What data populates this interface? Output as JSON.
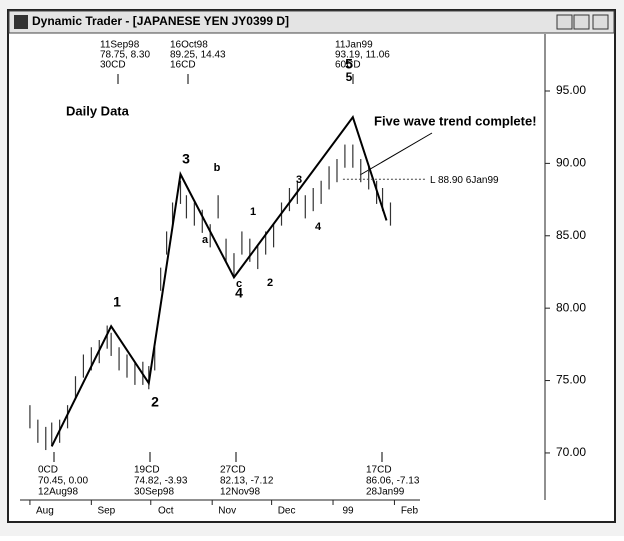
{
  "window_title": "Dynamic Trader - [JAPANESE YEN  JY0399 D]",
  "chart_data": {
    "type": "line",
    "subtitle": "Daily Data",
    "annotation": "Five wave trend complete!",
    "level": {
      "value": 88.9,
      "label": "L 88.90 6Jan99"
    },
    "xlim": [
      -4,
      260
    ],
    "ylim": [
      66.75,
      98.66
    ],
    "xticks": [
      {
        "value": 0,
        "label": "Aug"
      },
      {
        "value": 31,
        "label": "Sep"
      },
      {
        "value": 61,
        "label": "Oct"
      },
      {
        "value": 92,
        "label": "Nov"
      },
      {
        "value": 122,
        "label": "Dec"
      },
      {
        "value": 153,
        "label": "99"
      },
      {
        "value": 184,
        "label": "Feb"
      }
    ],
    "yticks": [
      {
        "value": 70,
        "label": "70.00"
      },
      {
        "value": 75,
        "label": "75.00"
      },
      {
        "value": 80,
        "label": "80.00"
      },
      {
        "value": 85,
        "label": "85.00"
      },
      {
        "value": 90,
        "label": "90.00"
      },
      {
        "value": 95,
        "label": "95.00"
      }
    ],
    "series": [
      {
        "name": "wave",
        "color": "#000000",
        "x": [
          11,
          41,
          60,
          76,
          103,
          163,
          180
        ],
        "values": [
          70.45,
          78.75,
          74.82,
          89.25,
          82.13,
          93.19,
          86.06
        ]
      }
    ],
    "bars": {
      "color": "#333333",
      "x": [
        0,
        4,
        8,
        11,
        15,
        19,
        23,
        27,
        31,
        35,
        39,
        41,
        45,
        49,
        53,
        57,
        60,
        63,
        66,
        69,
        72,
        76,
        79,
        83,
        87,
        91,
        95,
        99,
        103,
        107,
        111,
        115,
        119,
        123,
        127,
        131,
        135,
        139,
        143,
        147,
        151,
        155,
        159,
        163,
        167,
        171,
        175,
        178,
        182
      ],
      "high": [
        73.3,
        72.3,
        71.8,
        72.1,
        72.3,
        73.3,
        75.3,
        76.8,
        77.3,
        77.8,
        78.8,
        78.3,
        77.3,
        76.8,
        76.3,
        76.3,
        76.0,
        77.3,
        82.8,
        85.3,
        87.3,
        88.8,
        87.8,
        87.3,
        86.8,
        85.8,
        87.8,
        84.8,
        83.8,
        85.3,
        84.8,
        84.3,
        85.3,
        85.8,
        87.3,
        88.3,
        88.8,
        87.8,
        88.3,
        88.8,
        89.8,
        90.3,
        91.3,
        91.3,
        90.3,
        89.8,
        88.8,
        88.3,
        87.3
      ],
      "low": [
        71.7,
        70.7,
        70.2,
        70.5,
        70.7,
        71.7,
        73.7,
        75.2,
        75.7,
        76.2,
        77.2,
        76.7,
        75.7,
        75.2,
        74.7,
        74.7,
        74.4,
        75.7,
        81.2,
        83.7,
        85.7,
        87.2,
        86.2,
        85.7,
        85.2,
        84.2,
        86.2,
        83.2,
        82.2,
        83.7,
        83.2,
        82.7,
        83.7,
        84.2,
        85.7,
        86.7,
        87.2,
        86.2,
        86.7,
        87.2,
        88.2,
        88.7,
        89.7,
        89.7,
        88.7,
        88.2,
        87.2,
        86.7,
        85.7
      ]
    },
    "wave_labels": [
      "1",
      "2",
      "3",
      "c",
      "4",
      "5",
      "5",
      "a",
      "b",
      "1",
      "2",
      "3",
      "4"
    ],
    "top_labels": [
      [
        "11Sep98",
        "78.75, 8.30",
        "30CD"
      ],
      [
        "16Oct98",
        "89.25, 14.43",
        "16CD"
      ],
      [
        "11Jan99",
        "93.19, 11.06",
        "60CD"
      ]
    ],
    "bottom_labels": [
      [
        "0CD",
        "70.45, 0.00",
        "12Aug98"
      ],
      [
        "19CD",
        "74.82, -3.93",
        "30Sep98"
      ],
      [
        "27CD",
        "82.13, -7.12",
        "12Nov98"
      ],
      [
        "17CD",
        "86.06, -7.13",
        "28Jan99"
      ]
    ]
  }
}
